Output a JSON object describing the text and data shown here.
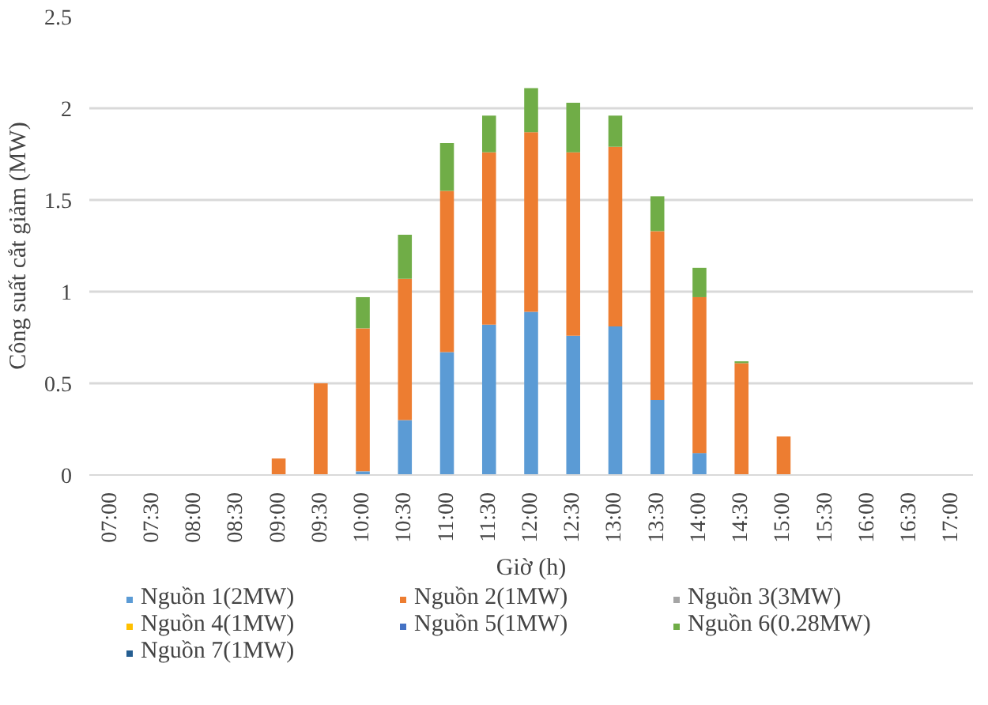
{
  "chart_data": {
    "type": "bar",
    "stacked": true,
    "xlabel": "Giờ (h)",
    "ylabel": "Công suất cắt giảm (MW)",
    "categories": [
      "07:00",
      "07:30",
      "08:00",
      "08:30",
      "09:00",
      "09:30",
      "10:00",
      "10:30",
      "11:00",
      "11:30",
      "12:00",
      "12:30",
      "13:00",
      "13:30",
      "14:00",
      "14:30",
      "15:00",
      "15:30",
      "16:00",
      "16:30",
      "17:00"
    ],
    "series": [
      {
        "name": "Nguồn 1(2MW)",
        "color": "#5b9bd5",
        "values": [
          0,
          0,
          0,
          0,
          0,
          0,
          0.02,
          0.3,
          0.67,
          0.82,
          0.89,
          0.76,
          0.81,
          0.41,
          0.12,
          0,
          0,
          0,
          0,
          0,
          0
        ]
      },
      {
        "name": "Nguồn 2(1MW)",
        "color": "#ed7d31",
        "values": [
          0,
          0,
          0,
          0,
          0.09,
          0.5,
          0.78,
          0.77,
          0.88,
          0.94,
          0.98,
          1.0,
          0.98,
          0.92,
          0.85,
          0.61,
          0.21,
          0,
          0,
          0,
          0
        ]
      },
      {
        "name": "Nguồn 3(3MW)",
        "color": "#a5a5a5",
        "values": [
          0,
          0,
          0,
          0,
          0,
          0,
          0,
          0,
          0,
          0,
          0,
          0,
          0,
          0,
          0,
          0,
          0,
          0,
          0,
          0,
          0
        ]
      },
      {
        "name": "Nguồn 4(1MW)",
        "color": "#ffc000",
        "values": [
          0,
          0,
          0,
          0,
          0,
          0,
          0,
          0,
          0,
          0,
          0,
          0,
          0,
          0,
          0,
          0,
          0,
          0,
          0,
          0,
          0
        ]
      },
      {
        "name": "Nguồn 5(1MW)",
        "color": "#4472c4",
        "values": [
          0,
          0,
          0,
          0,
          0,
          0,
          0,
          0,
          0,
          0,
          0,
          0,
          0,
          0,
          0,
          0,
          0,
          0,
          0,
          0,
          0
        ]
      },
      {
        "name": "Nguồn 6(0.28MW)",
        "color": "#70ad47",
        "values": [
          0,
          0,
          0,
          0,
          0,
          0,
          0.17,
          0.24,
          0.26,
          0.2,
          0.24,
          0.27,
          0.17,
          0.19,
          0.16,
          0.01,
          0,
          0,
          0,
          0,
          0
        ]
      },
      {
        "name": "Nguồn 7(1MW)",
        "color": "#255e91",
        "values": [
          0,
          0,
          0,
          0,
          0,
          0,
          0,
          0,
          0,
          0,
          0,
          0,
          0,
          0,
          0,
          0,
          0,
          0,
          0,
          0,
          0
        ]
      }
    ],
    "ylim": [
      0,
      2.5
    ],
    "yticks": [
      0,
      0.5,
      1,
      1.5,
      2,
      2.5
    ],
    "grid": "y",
    "legend": "bottom"
  }
}
